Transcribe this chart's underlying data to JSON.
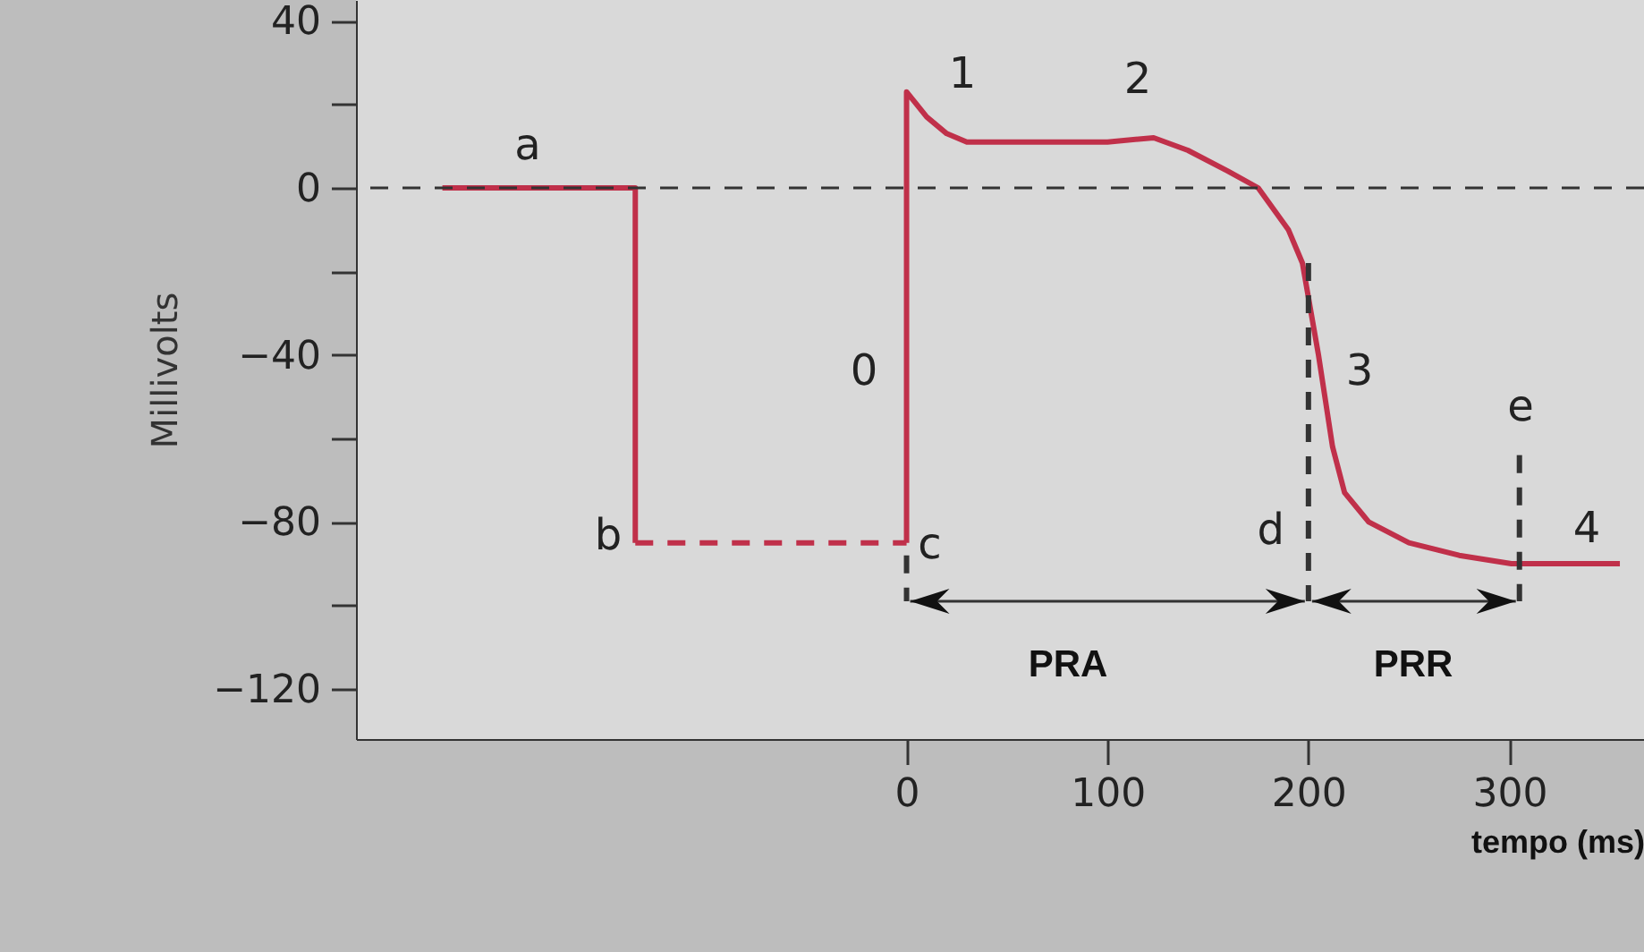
{
  "chart_data": {
    "type": "line",
    "xlabel": "tempo (ms)",
    "ylabel": "Millivolts",
    "xlim": [
      -274,
      367
    ],
    "ylim": [
      -132,
      45
    ],
    "xticks": [
      0,
      100,
      200,
      300
    ],
    "yticks": [
      {
        "value": -120,
        "label": "−120"
      },
      {
        "value": -100,
        "label": null
      },
      {
        "value": -80,
        "label": "−80"
      },
      {
        "value": -60,
        "label": null
      },
      {
        "value": -40,
        "label": "−40"
      },
      {
        "value": -20,
        "label": null
      },
      0,
      {
        "value": 20,
        "label": null
      },
      40
    ],
    "marker": "none",
    "series": [
      {
        "color": "#c0304a",
        "line_style": "solid",
        "x": [
          -231,
          -135,
          -135
        ],
        "values": [
          0,
          0,
          -85
        ]
      },
      {
        "color": "#c0304a",
        "line_style": "dashed",
        "x": [
          -135,
          0
        ],
        "values": [
          -85,
          -85
        ]
      },
      {
        "color": "#c0304a",
        "line_style": "solid",
        "x": [
          0,
          0,
          5,
          10,
          20,
          30,
          60,
          100,
          123,
          140,
          160,
          175,
          190,
          197,
          205,
          212,
          218,
          230,
          250,
          275,
          301,
          355
        ],
        "values": [
          -85,
          23,
          20,
          17,
          13,
          11,
          11,
          11,
          12,
          9,
          4,
          0,
          -10,
          -18,
          -40,
          -62,
          -73,
          -80,
          -85,
          -88,
          -90,
          -90
        ]
      },
      {
        "color": "#333333",
        "line_style": "dashed",
        "x": [
          0,
          0
        ],
        "values": [
          -88,
          -99
        ]
      },
      {
        "color": "#333333",
        "line_style": "dashed",
        "x": [
          200,
          200
        ],
        "values": [
          -18,
          -99
        ]
      },
      {
        "color": "#333333",
        "line_style": "dashed",
        "x": [
          305,
          305
        ],
        "values": [
          -64,
          -99
        ]
      }
    ],
    "ref_lines": [
      {
        "axis": "y",
        "value": 0,
        "label": null,
        "color": "#333333",
        "line_style": "dashed"
      }
    ],
    "annotations": [
      "a",
      "b",
      {
        "text": "c",
        "x": 0,
        "y": -99
      },
      {
        "text": "d",
        "x": 200,
        "y": -99
      },
      "e",
      "0",
      "1",
      "2",
      "3",
      "4",
      "PRA",
      "PRR"
    ]
  }
}
